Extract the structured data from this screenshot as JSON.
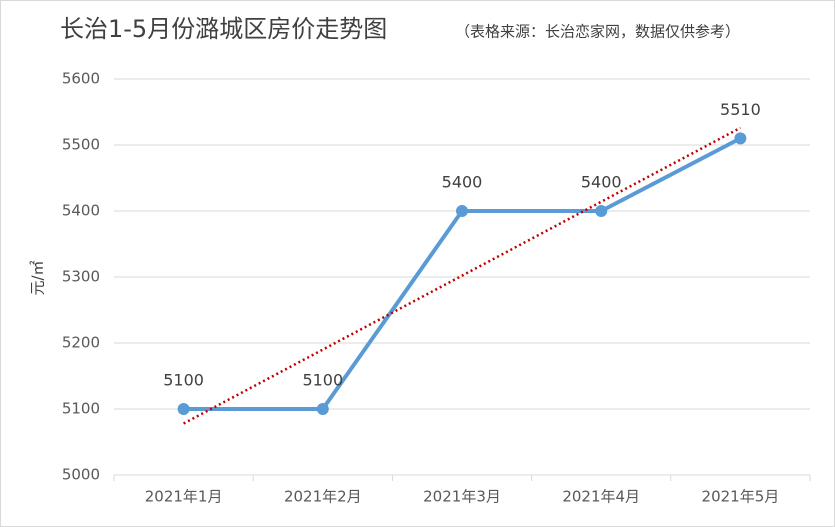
{
  "chart_data": {
    "type": "line",
    "title": "长治1-5月份潞城区房价走势图",
    "subtitle": "（表格来源：长治恋家网，数据仅供参考）",
    "y_label": "元/㎡",
    "categories": [
      "2021年1月",
      "2021年2月",
      "2021年3月",
      "2021年4月",
      "2021年5月"
    ],
    "series": [
      {
        "name": "房价",
        "color": "#5b9bd5",
        "values": [
          5100,
          5100,
          5400,
          5400,
          5510
        ]
      }
    ],
    "trendline": {
      "type": "linear",
      "color": "#c00000"
    },
    "ylim": [
      5000,
      5600
    ],
    "yticks": [
      5000,
      5100,
      5200,
      5300,
      5400,
      5500,
      5600
    ],
    "grid": true,
    "data_labels": true
  }
}
